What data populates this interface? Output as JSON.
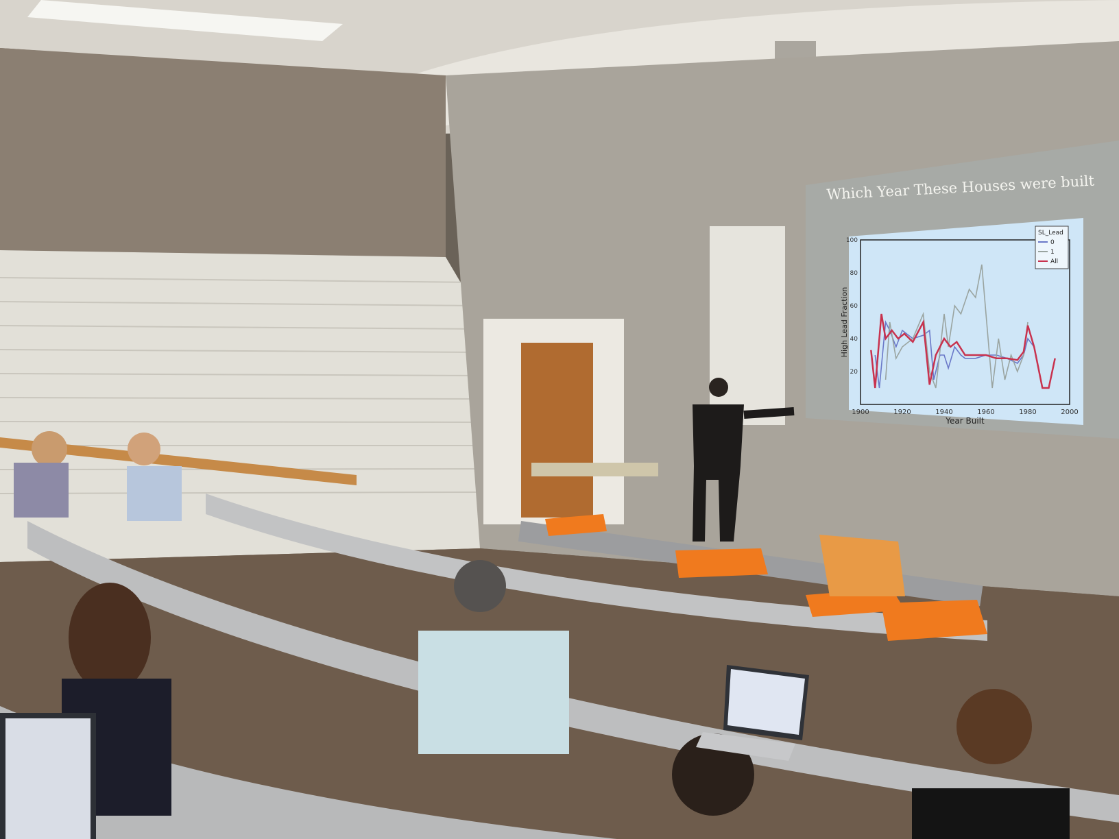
{
  "slide": {
    "title": "Which Year These Houses were built"
  },
  "chart_data": {
    "type": "line",
    "title": "",
    "xlabel": "Year Built",
    "ylabel": "High Lead Fraction",
    "xlim": [
      1900,
      2000
    ],
    "ylim": [
      0,
      100
    ],
    "x_ticks": [
      "1900",
      "1920",
      "1940",
      "1960",
      "1980",
      "2000"
    ],
    "y_ticks": [
      "20",
      "40",
      "60",
      "80",
      "100"
    ],
    "legend": {
      "title": "SL_Lead",
      "placement": "top-right"
    },
    "grid": false,
    "series": [
      {
        "name": "0",
        "color": "#6a78c8",
        "points": [
          [
            1907,
            30
          ],
          [
            1909,
            10
          ],
          [
            1912,
            50
          ],
          [
            1914,
            45
          ],
          [
            1917,
            35
          ],
          [
            1920,
            45
          ],
          [
            1925,
            40
          ],
          [
            1930,
            42
          ],
          [
            1933,
            45
          ],
          [
            1935,
            15
          ],
          [
            1938,
            30
          ],
          [
            1940,
            30
          ],
          [
            1942,
            22
          ],
          [
            1945,
            35
          ],
          [
            1948,
            30
          ],
          [
            1950,
            28
          ],
          [
            1955,
            28
          ],
          [
            1960,
            30
          ],
          [
            1965,
            30
          ],
          [
            1970,
            28
          ],
          [
            1975,
            25
          ],
          [
            1978,
            30
          ],
          [
            1980,
            40
          ],
          [
            1983,
            35
          ]
        ]
      },
      {
        "name": "1",
        "color": "#9aa4a0",
        "points": [
          [
            1912,
            15
          ],
          [
            1914,
            50
          ],
          [
            1917,
            28
          ],
          [
            1920,
            35
          ],
          [
            1925,
            40
          ],
          [
            1930,
            55
          ],
          [
            1933,
            20
          ],
          [
            1936,
            10
          ],
          [
            1940,
            55
          ],
          [
            1942,
            35
          ],
          [
            1945,
            60
          ],
          [
            1948,
            55
          ],
          [
            1952,
            70
          ],
          [
            1955,
            65
          ],
          [
            1958,
            85
          ],
          [
            1960,
            55
          ],
          [
            1963,
            10
          ],
          [
            1966,
            40
          ],
          [
            1969,
            15
          ],
          [
            1972,
            30
          ],
          [
            1975,
            20
          ],
          [
            1978,
            30
          ],
          [
            1980,
            50
          ]
        ]
      },
      {
        "name": "All",
        "color": "#c8324e",
        "points": [
          [
            1905,
            33
          ],
          [
            1907,
            10
          ],
          [
            1910,
            55
          ],
          [
            1912,
            40
          ],
          [
            1915,
            45
          ],
          [
            1918,
            40
          ],
          [
            1921,
            43
          ],
          [
            1925,
            38
          ],
          [
            1930,
            50
          ],
          [
            1933,
            12
          ],
          [
            1936,
            30
          ],
          [
            1940,
            40
          ],
          [
            1943,
            35
          ],
          [
            1946,
            38
          ],
          [
            1950,
            30
          ],
          [
            1955,
            30
          ],
          [
            1960,
            30
          ],
          [
            1965,
            28
          ],
          [
            1970,
            28
          ],
          [
            1975,
            27
          ],
          [
            1978,
            32
          ],
          [
            1980,
            48
          ],
          [
            1983,
            35
          ],
          [
            1987,
            10
          ],
          [
            1990,
            10
          ],
          [
            1993,
            28
          ]
        ]
      }
    ]
  }
}
